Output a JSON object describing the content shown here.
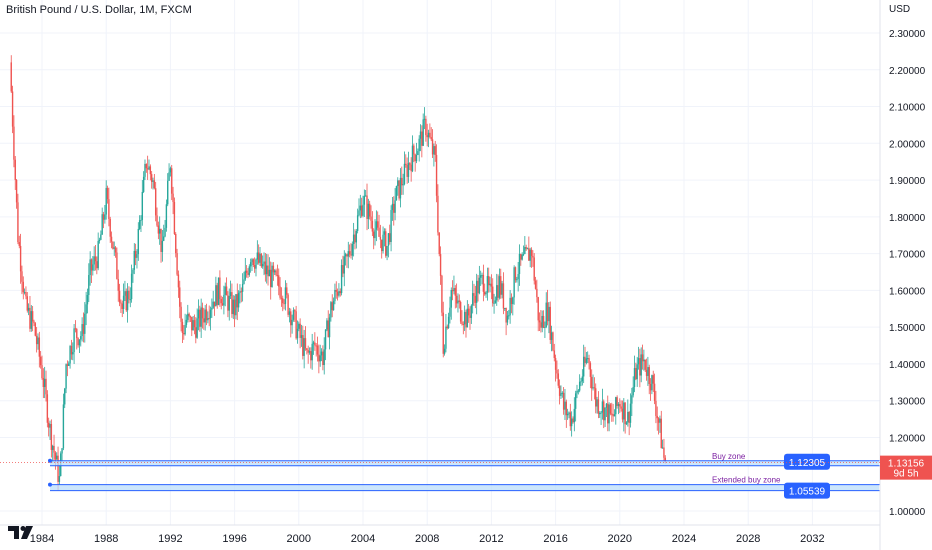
{
  "header": {
    "title": "British Pound / U.S. Dollar, 1M, FXCM",
    "currency": "USD"
  },
  "colors": {
    "up": "#26a69a",
    "down": "#ef5350",
    "zone_line": "#2962ff",
    "zone_fill": "#bbdefb",
    "zone_text": "#7b1fa2",
    "tag_blue": "#2962ff",
    "last_price": "#ef5350"
  },
  "price_axis": {
    "ticks": [
      "2.30000",
      "2.20000",
      "2.10000",
      "2.00000",
      "1.90000",
      "1.80000",
      "1.70000",
      "1.60000",
      "1.50000",
      "1.40000",
      "1.30000",
      "1.20000",
      "1.00000"
    ],
    "last_price": "1.13156",
    "countdown": "9d 5h"
  },
  "time_axis": {
    "ticks": [
      "1984",
      "1988",
      "1992",
      "1996",
      "2000",
      "2004",
      "2008",
      "2012",
      "2016",
      "2020",
      "2024",
      "2028",
      "2032"
    ]
  },
  "zones": [
    {
      "label": "Buy zone",
      "price": "1.12305"
    },
    {
      "label": "Extended buy zone",
      "price": "1.05539"
    }
  ],
  "chart_data": {
    "type": "line",
    "style": "candlestick",
    "title": "British Pound / U.S. Dollar, 1M, FXCM",
    "ylabel": "USD",
    "ylim": [
      0.95,
      2.32
    ],
    "xlim": [
      1982.0,
      2034.0
    ],
    "grid": true,
    "series": [
      {
        "name": "",
        "x": [
          1982.0,
          1982.5,
          1983.0,
          1983.5,
          1984.0,
          1984.5,
          1985.1,
          1985.5,
          1986.0,
          1986.5,
          1987.0,
          1987.5,
          1988.0,
          1988.5,
          1989.0,
          1989.5,
          1990.0,
          1990.5,
          1990.9,
          1991.5,
          1992.0,
          1992.7,
          1993.0,
          1993.5,
          1994.0,
          1995.0,
          1996.0,
          1996.5,
          1997.0,
          1998.0,
          1999.0,
          2000.0,
          2000.5,
          2001.0,
          2001.5,
          2002.0,
          2003.0,
          2004.0,
          2004.9,
          2005.5,
          2006.0,
          2006.9,
          2007.5,
          2007.9,
          2008.5,
          2009.0,
          2009.5,
          2010.0,
          2010.5,
          2011.0,
          2011.5,
          2012.0,
          2012.5,
          2013.0,
          2013.5,
          2014.5,
          2015.0,
          2015.5,
          2016.0,
          2016.5,
          2017.0,
          2017.5,
          2018.0,
          2018.5,
          2019.0,
          2019.5,
          2020.0,
          2020.5,
          2021.0,
          2021.5,
          2022.0,
          2022.5,
          2022.8
        ],
        "values": [
          2.22,
          1.75,
          1.55,
          1.5,
          1.38,
          1.22,
          1.08,
          1.4,
          1.48,
          1.48,
          1.65,
          1.7,
          1.85,
          1.7,
          1.55,
          1.6,
          1.75,
          1.95,
          1.9,
          1.7,
          1.95,
          1.48,
          1.52,
          1.5,
          1.53,
          1.6,
          1.55,
          1.6,
          1.7,
          1.65,
          1.6,
          1.48,
          1.42,
          1.45,
          1.42,
          1.55,
          1.68,
          1.85,
          1.75,
          1.72,
          1.85,
          1.95,
          2.0,
          2.05,
          1.95,
          1.45,
          1.6,
          1.55,
          1.52,
          1.6,
          1.63,
          1.58,
          1.62,
          1.53,
          1.65,
          1.71,
          1.5,
          1.55,
          1.4,
          1.28,
          1.25,
          1.35,
          1.42,
          1.3,
          1.28,
          1.25,
          1.3,
          1.25,
          1.38,
          1.41,
          1.35,
          1.22,
          1.13
        ]
      }
    ],
    "annotations": [
      {
        "text": "Buy zone",
        "y": 1.12305
      },
      {
        "text": "Extended buy zone",
        "y": 1.05539
      }
    ]
  }
}
